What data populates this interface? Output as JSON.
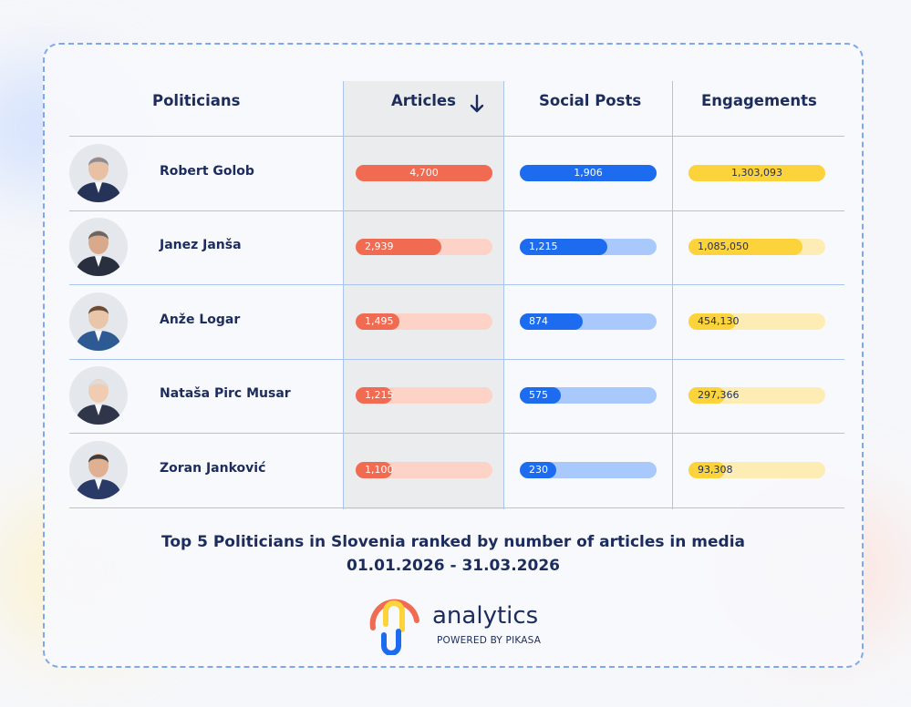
{
  "chart_data": {
    "type": "table",
    "columns": [
      "Politicians",
      "Articles",
      "Social Posts",
      "Engagements"
    ],
    "sort": {
      "column": "Articles",
      "direction": "descending"
    },
    "rows": [
      {
        "name": "Robert Golob",
        "articles": 4700,
        "articles_label": "4,700",
        "social_posts": 1906,
        "social_posts_label": "1,906",
        "engagements": 1303093,
        "engagements_label": "1,303,093"
      },
      {
        "name": "Janez Janša",
        "articles": 2939,
        "articles_label": "2,939",
        "social_posts": 1215,
        "social_posts_label": "1,215",
        "engagements": 1085050,
        "engagements_label": "1,085,050"
      },
      {
        "name": "Anže Logar",
        "articles": 1495,
        "articles_label": "1,495",
        "social_posts": 874,
        "social_posts_label": "874",
        "engagements": 454130,
        "engagements_label": "454,130"
      },
      {
        "name": "Nataša Pirc Musar",
        "articles": 1215,
        "articles_label": "1,215",
        "social_posts": 575,
        "social_posts_label": "575",
        "engagements": 297366,
        "engagements_label": "297,366"
      },
      {
        "name": "Zoran Janković",
        "articles": 1100,
        "articles_label": "1,100",
        "social_posts": 230,
        "social_posts_label": "230",
        "engagements": 93308,
        "engagements_label": "93,308"
      }
    ],
    "title": "Top 5 Politicians in Slovenia ranked by number of articles in media",
    "subtitle": "01.01.2026 - 31.03.2026"
  },
  "colors": {
    "articles_bar": "#f06b52",
    "articles_track": "#fdd2c7",
    "social_bar": "#1d6cf0",
    "social_track": "#a9c8fb",
    "engagements_bar": "#fcd33b",
    "engagements_track": "#fdedb5",
    "text": "#1c2c5c",
    "border": "#7fa8ec"
  },
  "icons": {
    "sort": "arrow-down-icon",
    "avatar": "person-photo-icon",
    "logo": "analytics-logo-icon"
  },
  "branding": {
    "product": "analytics",
    "powered_by": "POWERED BY PIKASA"
  }
}
